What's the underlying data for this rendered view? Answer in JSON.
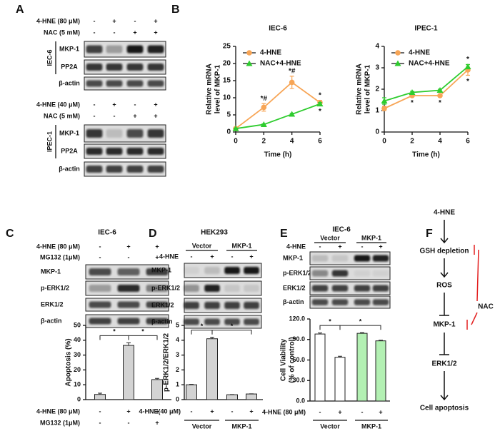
{
  "panel_labels": [
    "A",
    "B",
    "C",
    "D",
    "E",
    "F"
  ],
  "blots": [
    {
      "cell_line": "IEC-6",
      "conditions": [
        {
          "label": "4-HNE (80 μM)",
          "signs": [
            "-",
            "+",
            "-",
            "+"
          ]
        },
        {
          "label": "NAC (5 mM)",
          "signs": [
            "-",
            "-",
            "+",
            "+"
          ]
        }
      ],
      "rows": [
        "MKP-1",
        "PP2A",
        "β-actin"
      ]
    },
    {
      "cell_line": "IPEC-1",
      "conditions": [
        {
          "label": "4-HNE (40 μM)",
          "signs": [
            "-",
            "+",
            "-",
            "+"
          ]
        },
        {
          "label": "NAC (5 mM)",
          "signs": [
            "-",
            "-",
            "+",
            "+"
          ]
        }
      ],
      "rows": [
        "MKP-1",
        "PP2A",
        "β-actin"
      ]
    },
    {
      "title": "IEC-6",
      "conditions": [
        {
          "label": "4-HNE (80 μM)",
          "signs": [
            "-",
            "+",
            "+"
          ]
        },
        {
          "label": "MG132 (1μM)",
          "signs": [
            "-",
            "-",
            "+"
          ]
        }
      ],
      "rows": [
        "MKP-1",
        "p-ERK1/2",
        "ERK1/2",
        "β-actin"
      ]
    },
    {
      "title": "HEK293",
      "groups": [
        "Vector",
        "MKP-1"
      ],
      "conditions": [
        {
          "label": "4-HNE",
          "signs": [
            "-",
            "+",
            "-",
            "+"
          ]
        }
      ],
      "rows": [
        "MKP-1",
        "p-ERK1/2",
        "ERK1/2",
        "β-actin"
      ]
    },
    {
      "title": "IEC-6",
      "groups": [
        "Vector",
        "MKP-1"
      ],
      "conditions": [
        {
          "label": "4-HNE",
          "signs": [
            "-",
            "+",
            "-",
            "+"
          ]
        }
      ],
      "rows": [
        "MKP-1",
        "p-ERK1/2",
        "ERK1/2",
        "β-actin"
      ]
    }
  ],
  "chart_data": [
    {
      "type": "line",
      "title": "IEC-6",
      "xlabel": "Time (h)",
      "ylabel": [
        "Relative mRNA",
        "level of MKP-1"
      ],
      "x": [
        0,
        2,
        4,
        6
      ],
      "xlim": [
        0,
        6
      ],
      "xticks": [
        0,
        2,
        4,
        6
      ],
      "ylim": [
        0,
        25
      ],
      "yticks": [
        0,
        5,
        10,
        15,
        20,
        25
      ],
      "legend": "upper left",
      "series": [
        {
          "name": "4-HNE",
          "color": "#f7a556",
          "marker": "circle",
          "values": [
            1,
            7.2,
            14.5,
            8.6
          ],
          "errors": [
            0.2,
            1.1,
            1.8,
            0.6
          ],
          "annotations": [
            null,
            "*#",
            "*#",
            "*"
          ],
          "annotation_position": "above"
        },
        {
          "name": "NAC+4-HNE",
          "color": "#2ecc2e",
          "marker": "triangle",
          "values": [
            1,
            2.2,
            5.2,
            8.2
          ],
          "errors": [
            0.1,
            0.2,
            0.3,
            0.4
          ],
          "annotations": [
            null,
            null,
            null,
            "*"
          ],
          "annotation_position": "below"
        }
      ]
    },
    {
      "type": "line",
      "title": "IPEC-1",
      "xlabel": "Time (h)",
      "ylabel": [
        "Relative mRNA",
        "level of MKP-1"
      ],
      "x": [
        0,
        2,
        4,
        6
      ],
      "xlim": [
        0,
        6
      ],
      "xticks": [
        0,
        2,
        4,
        6
      ],
      "ylim": [
        0,
        4
      ],
      "yticks": [
        0,
        1,
        2,
        3,
        4
      ],
      "legend": "upper left",
      "series": [
        {
          "name": "4-HNE",
          "color": "#f7a556",
          "marker": "circle",
          "values": [
            1.1,
            1.7,
            1.7,
            2.9
          ],
          "errors": [
            0.1,
            0.05,
            0.05,
            0.25
          ],
          "annotations": [
            null,
            "*",
            "*",
            "*"
          ],
          "annotation_position": "below"
        },
        {
          "name": "NAC+4-HNE",
          "color": "#2ecc2e",
          "marker": "triangle",
          "values": [
            1.45,
            1.85,
            1.95,
            3.05
          ],
          "errors": [
            0.15,
            0.05,
            0.05,
            0.1
          ],
          "annotations": [
            null,
            null,
            null,
            "*"
          ],
          "annotation_position": "above"
        }
      ]
    },
    {
      "type": "bar",
      "ylabel": "Apoptosis (%)",
      "values": [
        3.5,
        36.5,
        13.5
      ],
      "errors": [
        0.8,
        1.8,
        0.8
      ],
      "color": "#d3d3d3",
      "ylim": [
        0,
        50
      ],
      "yticks": [
        0,
        10,
        20,
        30,
        40,
        50
      ],
      "conditions": [
        {
          "label": "4-HNE (80 μM)",
          "signs": [
            "-",
            "+",
            "+"
          ]
        },
        {
          "label": "MG132 (1μM)",
          "signs": [
            "-",
            "-",
            "+"
          ]
        }
      ],
      "significance": [
        {
          "pair": [
            0,
            1
          ],
          "label": "*"
        },
        {
          "pair": [
            1,
            2
          ],
          "label": "*"
        }
      ]
    },
    {
      "type": "bar",
      "ylabel": "p-ERK1/2/ERK1/2",
      "values": [
        1,
        4.1,
        0.33,
        0.38
      ],
      "errors": [
        0.03,
        0.1,
        0.01,
        0.01
      ],
      "color": "#d3d3d3",
      "ylim": [
        0,
        5
      ],
      "yticks": [
        0,
        1,
        2,
        3,
        4,
        5
      ],
      "conditions": [
        {
          "label": "4-HNE(40 μM)",
          "signs": [
            "-",
            "+",
            "-",
            "+"
          ]
        }
      ],
      "groups": [
        {
          "label": "Vector",
          "span": [
            0,
            1
          ]
        },
        {
          "label": "MKP-1",
          "span": [
            2,
            3
          ]
        }
      ],
      "significance": [
        {
          "pair": [
            0,
            1
          ],
          "label": "*"
        },
        {
          "pair": [
            1,
            3
          ],
          "label": "*"
        }
      ]
    },
    {
      "type": "bar",
      "ylabel": [
        "Cell Viability",
        "(% of control)"
      ],
      "values": [
        98,
        64,
        99,
        88
      ],
      "errors": [
        1.5,
        1.5,
        1,
        1
      ],
      "colors": [
        "#ffffff",
        "#ffffff",
        "#b3f0b3",
        "#b3f0b3"
      ],
      "ylim": [
        0,
        120
      ],
      "yticks": [
        {
          "value": 0,
          "label": "0.0"
        },
        {
          "value": 30,
          "label": "30.0"
        },
        {
          "value": 60,
          "label": "60.0"
        },
        {
          "value": 90,
          "label": "90.0"
        },
        {
          "value": 120,
          "label": "120.0"
        }
      ],
      "conditions": [
        {
          "label": "4-HNE (80 μM)",
          "signs": [
            "-",
            "+",
            "-",
            "+"
          ]
        }
      ],
      "groups": [
        {
          "label": "Vector",
          "span": [
            0,
            1
          ]
        },
        {
          "label": "MKP-1",
          "span": [
            2,
            3
          ]
        }
      ],
      "significance": [
        {
          "pair": [
            0,
            1
          ],
          "label": "*"
        },
        {
          "pair": [
            1,
            3
          ],
          "label": "*"
        }
      ]
    }
  ],
  "diagram": {
    "nodes": [
      "4-HNE",
      "GSH depletion",
      "ROS",
      "MKP-1",
      "ERK1/2",
      "Cell apoptosis"
    ],
    "inhibitor": "NAC"
  }
}
